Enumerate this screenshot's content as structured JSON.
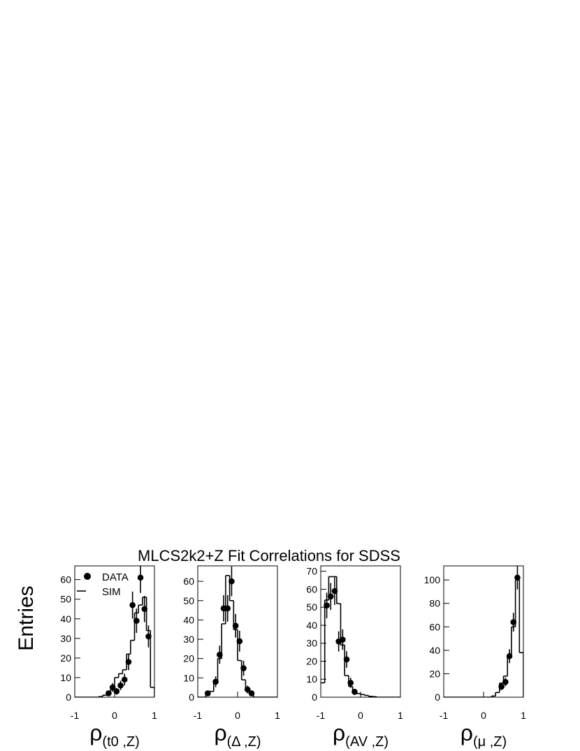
{
  "title": "MLCS2k2+Z  Fit Correlations for SDSS",
  "ylabel": "Entries",
  "chart_data": [
    {
      "type": "histogram",
      "xlabel": {
        "symbol": "ρ",
        "subscript": "(t0 ,Z)"
      },
      "xlim": [
        -1,
        1
      ],
      "xticks": [
        -1,
        0,
        1
      ],
      "ylim": [
        0,
        67
      ],
      "yticks": [
        0,
        10,
        20,
        30,
        40,
        50,
        60
      ],
      "legend": "upper left",
      "bins": [
        -1,
        -0.9,
        -0.8,
        -0.7,
        -0.6,
        -0.5,
        -0.4,
        -0.3,
        -0.2,
        -0.1,
        0,
        0.1,
        0.2,
        0.3,
        0.4,
        0.5,
        0.6,
        0.7,
        0.8,
        0.9,
        1
      ],
      "series": [
        {
          "name": "DATA",
          "kind": "points",
          "color": "#000000",
          "x": [
            -0.15,
            -0.05,
            0.05,
            0.15,
            0.25,
            0.35,
            0.45,
            0.55,
            0.65,
            0.75,
            0.85
          ],
          "values": [
            2,
            5,
            3,
            6,
            9,
            18,
            47,
            39,
            61,
            45,
            31
          ],
          "errors": [
            1.4,
            2.2,
            1.7,
            2.4,
            3,
            4.2,
            6.9,
            6.2,
            7.8,
            6.7,
            5.6
          ]
        },
        {
          "name": "SIM",
          "kind": "steps",
          "color": "#000000",
          "counts": [
            0,
            0,
            0,
            0,
            0,
            0,
            0.3,
            1,
            3,
            5,
            10,
            12,
            14,
            22,
            29,
            43,
            47,
            51,
            34,
            5
          ]
        }
      ]
    },
    {
      "type": "histogram",
      "xlabel": {
        "symbol": "ρ",
        "subscript": "(Δ ,Z)"
      },
      "xlim": [
        -1,
        1
      ],
      "xticks": [
        -1,
        0,
        1
      ],
      "ylim": [
        0,
        68
      ],
      "yticks": [
        0,
        10,
        20,
        30,
        40,
        50,
        60
      ],
      "bins": [
        -1,
        -0.9,
        -0.8,
        -0.7,
        -0.6,
        -0.5,
        -0.4,
        -0.3,
        -0.2,
        -0.1,
        0,
        0.1,
        0.2,
        0.3,
        0.4,
        0.5,
        0.6,
        0.7,
        0.8,
        0.9,
        1
      ],
      "series": [
        {
          "kind": "points",
          "color": "#000000",
          "x": [
            -0.75,
            -0.55,
            -0.45,
            -0.35,
            -0.25,
            -0.15,
            -0.05,
            0.05,
            0.15,
            0.25,
            0.35
          ],
          "values": [
            2,
            8,
            22,
            46,
            46,
            60,
            37,
            29,
            15,
            4,
            2
          ],
          "errors": [
            1.4,
            2.8,
            4.7,
            6.8,
            6.8,
            7.7,
            6.1,
            5.4,
            3.9,
            2,
            1.4
          ]
        },
        {
          "kind": "steps",
          "color": "#000000",
          "counts": [
            0,
            0,
            1,
            3,
            9,
            20,
            38,
            63,
            50,
            35,
            19,
            9,
            4,
            2,
            0,
            0,
            0,
            0,
            0,
            0
          ]
        }
      ]
    },
    {
      "type": "histogram",
      "xlabel": {
        "symbol": "ρ",
        "subscript": "(AV ,Z)"
      },
      "xlim": [
        -1,
        1
      ],
      "xticks": [
        -1,
        0,
        1
      ],
      "ylim": [
        0,
        73
      ],
      "yticks": [
        0,
        10,
        20,
        30,
        40,
        50,
        60,
        70
      ],
      "bins": [
        -1,
        -0.9,
        -0.8,
        -0.7,
        -0.6,
        -0.5,
        -0.4,
        -0.3,
        -0.2,
        -0.1,
        0,
        0.1,
        0.2,
        0.3,
        0.4,
        0.5,
        0.6,
        0.7,
        0.8,
        0.9,
        1
      ],
      "series": [
        {
          "kind": "points",
          "color": "#000000",
          "x": [
            -0.85,
            -0.75,
            -0.65,
            -0.55,
            -0.45,
            -0.35,
            -0.25,
            -0.15
          ],
          "values": [
            51,
            56,
            59,
            31,
            32,
            21,
            8,
            3
          ],
          "errors": [
            7.1,
            7.5,
            7.7,
            5.6,
            5.7,
            4.6,
            2.8,
            1.7
          ]
        },
        {
          "kind": "steps",
          "color": "#000000",
          "counts": [
            8,
            54,
            67,
            67,
            52,
            29,
            12,
            6,
            3,
            2,
            1.5,
            1,
            0.5,
            0.3,
            0,
            0,
            0,
            0,
            0,
            0
          ]
        }
      ]
    },
    {
      "type": "histogram",
      "xlabel": {
        "symbol": "ρ",
        "subscript": "(μ ,Z)"
      },
      "xlim": [
        -1,
        1
      ],
      "xticks": [
        -1,
        0,
        1
      ],
      "ylim": [
        0,
        112
      ],
      "yticks": [
        0,
        20,
        40,
        60,
        80,
        100
      ],
      "bins": [
        -1,
        -0.9,
        -0.8,
        -0.7,
        -0.6,
        -0.5,
        -0.4,
        -0.3,
        -0.2,
        -0.1,
        0,
        0.1,
        0.2,
        0.3,
        0.4,
        0.5,
        0.6,
        0.7,
        0.8,
        0.9,
        1
      ],
      "series": [
        {
          "kind": "points",
          "color": "#000000",
          "x": [
            0.45,
            0.55,
            0.65,
            0.75,
            0.85
          ],
          "values": [
            9,
            13,
            35,
            64,
            102
          ],
          "errors": [
            3,
            3.6,
            5.9,
            8,
            10.1
          ]
        },
        {
          "kind": "steps",
          "color": "#000000",
          "counts": [
            0,
            0,
            0,
            0,
            0,
            0,
            0,
            0,
            0,
            0,
            0,
            0,
            1,
            4,
            12,
            18,
            35,
            60,
            100,
            38
          ]
        }
      ]
    }
  ]
}
